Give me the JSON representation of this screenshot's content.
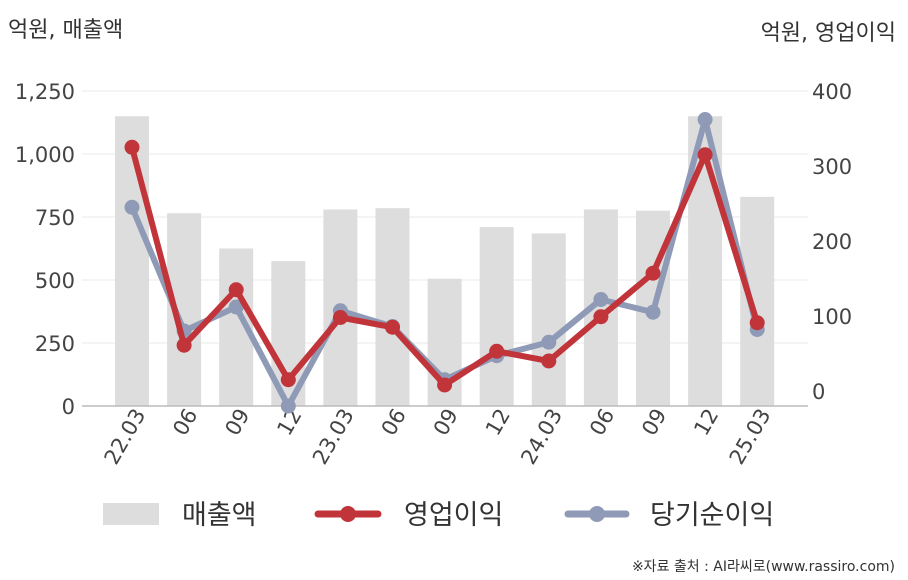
{
  "chart_data": {
    "type": "bar+line",
    "left_unit_label": "억원, 매출액",
    "right_unit_label": "억원, 영업이익",
    "categories": [
      "22.03",
      "06",
      "09",
      "12",
      "23.03",
      "06",
      "09",
      "12",
      "24.03",
      "06",
      "09",
      "12",
      "25.03"
    ],
    "left_axis": {
      "ylim": [
        0,
        1250
      ],
      "ticks": [
        "0",
        "250",
        "500",
        "750",
        "1,000",
        "1,250"
      ]
    },
    "right_axis": {
      "ylim": [
        -20,
        400
      ],
      "ticks": [
        "0",
        "100",
        "200",
        "300",
        "400"
      ]
    },
    "grid": true,
    "legend_position": "bottom",
    "series": [
      {
        "name": "매출액",
        "type": "bar",
        "axis": "left",
        "color": "#dddddd",
        "values": [
          1150,
          765,
          625,
          575,
          780,
          785,
          505,
          710,
          685,
          780,
          775,
          1150,
          830
        ]
      },
      {
        "name": "영업이익",
        "type": "line",
        "axis": "right",
        "color": "#c0343a",
        "values": [
          325,
          61,
          135,
          15,
          98,
          85,
          8,
          53,
          40,
          99,
          157,
          315,
          91
        ]
      },
      {
        "name": "당기순이익",
        "type": "line",
        "axis": "right",
        "color": "#8e9ab6",
        "values": [
          245,
          80,
          112,
          -20,
          107,
          86,
          15,
          47,
          65,
          122,
          105,
          362,
          82
        ]
      }
    ]
  },
  "source_note": "※자료 출처 : AI라씨로(www.rassiro.com)"
}
